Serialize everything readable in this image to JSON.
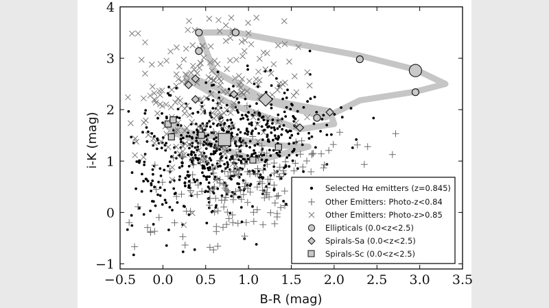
{
  "chart_data": {
    "type": "scatter",
    "title": "",
    "xlabel": "B-R (mag)",
    "ylabel": "i-K (mag)",
    "xlim": [
      -0.5,
      3.5
    ],
    "ylim": [
      -1.1,
      4.0
    ],
    "xticks": [
      "−0.5",
      "0.0",
      "0.5",
      "1.0",
      "1.5",
      "2.0",
      "2.5",
      "3.0",
      "3.5"
    ],
    "xtick_values": [
      -0.5,
      0.0,
      0.5,
      1.0,
      1.5,
      2.0,
      2.5,
      3.0,
      3.5
    ],
    "yticks": [
      "−1",
      "0",
      "1",
      "2",
      "3",
      "4"
    ],
    "ytick_values": [
      -1,
      0,
      1,
      2,
      3,
      4
    ],
    "grid": false,
    "legend_position": "bottom-right",
    "legend": [
      "Selected Hα emitters (z=0.845)",
      "Other Emitters: Photo-z<0.84",
      "Other Emitters: Photo-z>0.85",
      "Ellipticals (0.0<z<2.5)",
      "Spirals-Sa (0.0<z<2.5)",
      "Spirals-Sc (0.0<z<2.5)"
    ],
    "tracks": [
      {
        "name": "Ellipticals (0.0<z<2.5)",
        "x": [
          0.42,
          0.85,
          2.3,
          2.95,
          3.3,
          2.95,
          2.3,
          1.9,
          1.25,
          0.6,
          0.42
        ],
        "y": [
          3.5,
          3.5,
          3.05,
          2.78,
          2.5,
          2.35,
          2.18,
          1.85,
          2.15,
          2.75,
          3.5
        ]
      },
      {
        "name": "Spirals-Sa (0.0<z<2.5)",
        "x": [
          0.35,
          0.8,
          1.2,
          1.95,
          2.0,
          1.6,
          0.8,
          0.4,
          0.28,
          0.35
        ],
        "y": [
          2.62,
          2.3,
          2.2,
          1.97,
          1.72,
          1.62,
          2.1,
          2.48,
          2.6,
          2.62
        ]
      },
      {
        "name": "Spirals-Sc (0.0<z<2.5)",
        "x": [
          0.05,
          0.3,
          0.72,
          1.4,
          1.7,
          1.1,
          0.6,
          0.12,
          0.05
        ],
        "y": [
          1.72,
          1.55,
          1.45,
          1.3,
          1.28,
          1.0,
          1.3,
          1.55,
          1.72
        ],
        "markers_x": [
          0.06,
          0.12,
          0.1,
          0.45,
          0.72,
          1.35,
          1.05
        ],
        "markers_y": [
          1.72,
          1.8,
          1.47,
          1.5,
          1.42,
          1.27,
          1.02
        ]
      }
    ],
    "series": [
      {
        "name": "Selected Hα emitters (z=0.845)",
        "marker": "dot",
        "count": 650,
        "center_x": 0.7,
        "center_y": 1.25,
        "spread_x": 0.55,
        "spread_y": 0.6
      },
      {
        "name": "Other Emitters: Photo-z<0.84",
        "marker": "plus",
        "count": 170,
        "center_x": 0.95,
        "center_y": 0.45,
        "spread_x": 0.6,
        "spread_y": 0.55
      },
      {
        "name": "Other Emitters: Photo-z>0.85",
        "marker": "x",
        "count": 230,
        "center_x": 0.6,
        "center_y": 2.2,
        "spread_x": 0.55,
        "spread_y": 0.8
      }
    ],
    "ellipticals_markers": {
      "x": [
        0.42,
        0.85,
        0.42,
        2.3,
        2.95,
        2.95,
        1.8
      ],
      "y": [
        3.5,
        3.5,
        3.14,
        2.98,
        2.76,
        2.34,
        1.84
      ],
      "large_index": 4
    },
    "sa_markers": {
      "x": [
        0.38,
        0.3,
        0.38,
        0.83,
        1.2,
        1.95,
        1.6
      ],
      "y": [
        2.6,
        2.48,
        2.2,
        2.3,
        2.2,
        1.95,
        1.65
      ],
      "large_index": 4
    },
    "colors": {
      "track": "#c6c6c6",
      "marker_fill": "#c9c9c9",
      "marker_edge": "#111111",
      "dot": "#000000",
      "plus": "#6a6a6a",
      "x": "#7a7a7a"
    }
  }
}
